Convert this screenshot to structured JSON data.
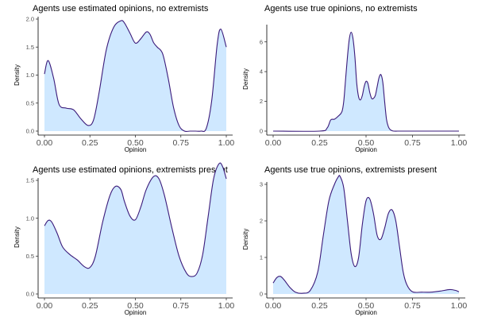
{
  "chart_data": [
    {
      "type": "area",
      "title": "Agents use estimated opinions, no extremists",
      "xlabel": "Opinion",
      "ylabel": "Density",
      "xlim": [
        0,
        1
      ],
      "ylim": [
        0,
        2.0
      ],
      "xticks": [
        "0.00",
        "0.25",
        "0.50",
        "0.75",
        "1.00"
      ],
      "yticks": [
        "0.0",
        "0.5",
        "1.0",
        "1.5",
        "2.0"
      ],
      "fill_color": "#cfe8ff",
      "line_color": "#3a1a7a",
      "grid": false,
      "x": [
        0.0,
        0.02,
        0.05,
        0.08,
        0.12,
        0.16,
        0.2,
        0.24,
        0.27,
        0.3,
        0.34,
        0.38,
        0.42,
        0.44,
        0.47,
        0.5,
        0.53,
        0.56,
        0.58,
        0.6,
        0.62,
        0.65,
        0.68,
        0.71,
        0.74,
        0.77,
        0.8,
        0.83,
        0.86,
        0.89,
        0.92,
        0.95,
        0.97,
        1.0
      ],
      "y": [
        1.02,
        1.26,
        0.95,
        0.48,
        0.41,
        0.38,
        0.22,
        0.1,
        0.2,
        0.68,
        1.45,
        1.85,
        1.97,
        1.93,
        1.75,
        1.57,
        1.65,
        1.77,
        1.73,
        1.58,
        1.5,
        1.38,
        0.95,
        0.42,
        0.1,
        0.0,
        0.0,
        0.0,
        0.0,
        0.05,
        0.55,
        1.55,
        1.82,
        1.5
      ]
    },
    {
      "type": "area",
      "title": "Agents use true opinions, no extremists",
      "xlabel": "Opinion",
      "ylabel": "Density",
      "xlim": [
        0,
        1
      ],
      "ylim": [
        0,
        7
      ],
      "xticks": [
        "0.00",
        "0.25",
        "0.50",
        "0.75",
        "1.00"
      ],
      "yticks": [
        "0",
        "2",
        "4",
        "6"
      ],
      "fill_color": "#cfe8ff",
      "line_color": "#3a1a7a",
      "grid": false,
      "x": [
        0.0,
        0.25,
        0.29,
        0.31,
        0.33,
        0.35,
        0.37,
        0.38,
        0.39,
        0.4,
        0.41,
        0.42,
        0.43,
        0.44,
        0.45,
        0.46,
        0.47,
        0.48,
        0.49,
        0.5,
        0.51,
        0.52,
        0.53,
        0.54,
        0.55,
        0.56,
        0.57,
        0.58,
        0.59,
        0.6,
        0.61,
        0.62,
        0.63,
        0.64,
        0.65,
        0.67,
        0.7,
        1.0
      ],
      "y": [
        0.0,
        0.0,
        0.2,
        0.75,
        0.8,
        1.0,
        1.3,
        2.0,
        3.5,
        5.0,
        6.2,
        6.65,
        6.2,
        5.0,
        3.2,
        2.3,
        2.1,
        2.4,
        3.0,
        3.35,
        3.2,
        2.6,
        2.2,
        2.2,
        2.4,
        3.0,
        3.6,
        3.8,
        3.3,
        2.0,
        0.8,
        0.3,
        0.1,
        0.03,
        0.0,
        0.0,
        0.0,
        0.0
      ]
    },
    {
      "type": "area",
      "title": "Agents use estimated opinions, extremists present",
      "xlabel": "Opinion",
      "ylabel": "Density",
      "xlim": [
        0,
        1
      ],
      "ylim": [
        0,
        1.5
      ],
      "xticks": [
        "0.00",
        "0.25",
        "0.50",
        "0.75",
        "1.00"
      ],
      "yticks": [
        "0.0",
        "0.5",
        "1.0",
        "1.5"
      ],
      "fill_color": "#cfe8ff",
      "line_color": "#3a1a7a",
      "grid": false,
      "x": [
        0.0,
        0.02,
        0.04,
        0.07,
        0.1,
        0.14,
        0.18,
        0.22,
        0.25,
        0.28,
        0.32,
        0.36,
        0.39,
        0.42,
        0.44,
        0.47,
        0.5,
        0.53,
        0.56,
        0.6,
        0.63,
        0.66,
        0.7,
        0.74,
        0.78,
        0.81,
        0.84,
        0.87,
        0.9,
        0.93,
        0.96,
        0.98,
        1.0
      ],
      "y": [
        0.9,
        0.97,
        0.95,
        0.8,
        0.62,
        0.52,
        0.45,
        0.36,
        0.35,
        0.5,
        0.95,
        1.3,
        1.42,
        1.38,
        1.22,
        1.03,
        0.98,
        1.15,
        1.38,
        1.55,
        1.52,
        1.3,
        0.88,
        0.5,
        0.28,
        0.23,
        0.28,
        0.52,
        1.02,
        1.52,
        1.72,
        1.68,
        1.52
      ]
    },
    {
      "type": "area",
      "title": "Agents use true opinions, extremists present",
      "xlabel": "Opinion",
      "ylabel": "Density",
      "xlim": [
        0,
        1
      ],
      "ylim": [
        0,
        3
      ],
      "xticks": [
        "0.00",
        "0.25",
        "0.50",
        "0.75",
        "1.00"
      ],
      "yticks": [
        "0",
        "1",
        "2",
        "3"
      ],
      "fill_color": "#cfe8ff",
      "line_color": "#3a1a7a",
      "grid": false,
      "x": [
        0.0,
        0.02,
        0.04,
        0.06,
        0.09,
        0.12,
        0.16,
        0.2,
        0.24,
        0.27,
        0.3,
        0.33,
        0.35,
        0.36,
        0.38,
        0.4,
        0.42,
        0.44,
        0.46,
        0.48,
        0.5,
        0.52,
        0.54,
        0.56,
        0.58,
        0.6,
        0.62,
        0.64,
        0.66,
        0.68,
        0.7,
        0.72,
        0.75,
        0.8,
        0.85,
        0.9,
        0.95,
        0.98,
        1.0
      ],
      "y": [
        0.3,
        0.45,
        0.48,
        0.38,
        0.18,
        0.05,
        0.02,
        0.1,
        0.6,
        1.6,
        2.55,
        3.0,
        3.2,
        3.22,
        2.9,
        2.0,
        1.1,
        0.75,
        1.0,
        1.9,
        2.55,
        2.6,
        2.2,
        1.6,
        1.5,
        1.8,
        2.2,
        2.3,
        2.0,
        1.3,
        0.6,
        0.25,
        0.06,
        0.05,
        0.05,
        0.08,
        0.12,
        0.1,
        0.06
      ]
    }
  ]
}
